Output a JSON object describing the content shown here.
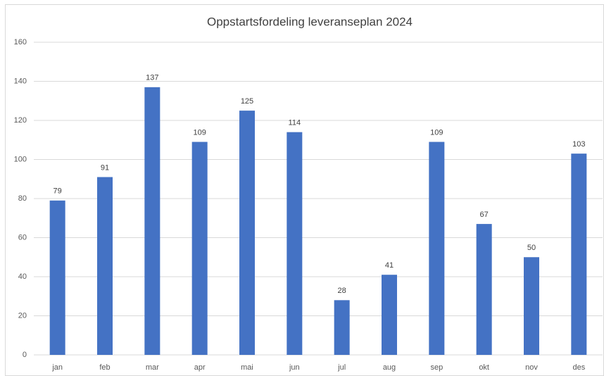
{
  "chart_data": {
    "type": "bar",
    "title": "Oppstartsfordeling leveranseplan 2024",
    "categories": [
      "jan",
      "feb",
      "mar",
      "apr",
      "mai",
      "jun",
      "jul",
      "aug",
      "sep",
      "okt",
      "nov",
      "des"
    ],
    "values": [
      79,
      91,
      137,
      109,
      125,
      114,
      28,
      41,
      109,
      67,
      50,
      103
    ],
    "color": "#4472c4",
    "ylim": [
      0,
      160
    ],
    "yticks": [
      0,
      20,
      40,
      60,
      80,
      100,
      120,
      140,
      160
    ],
    "grid": true
  }
}
